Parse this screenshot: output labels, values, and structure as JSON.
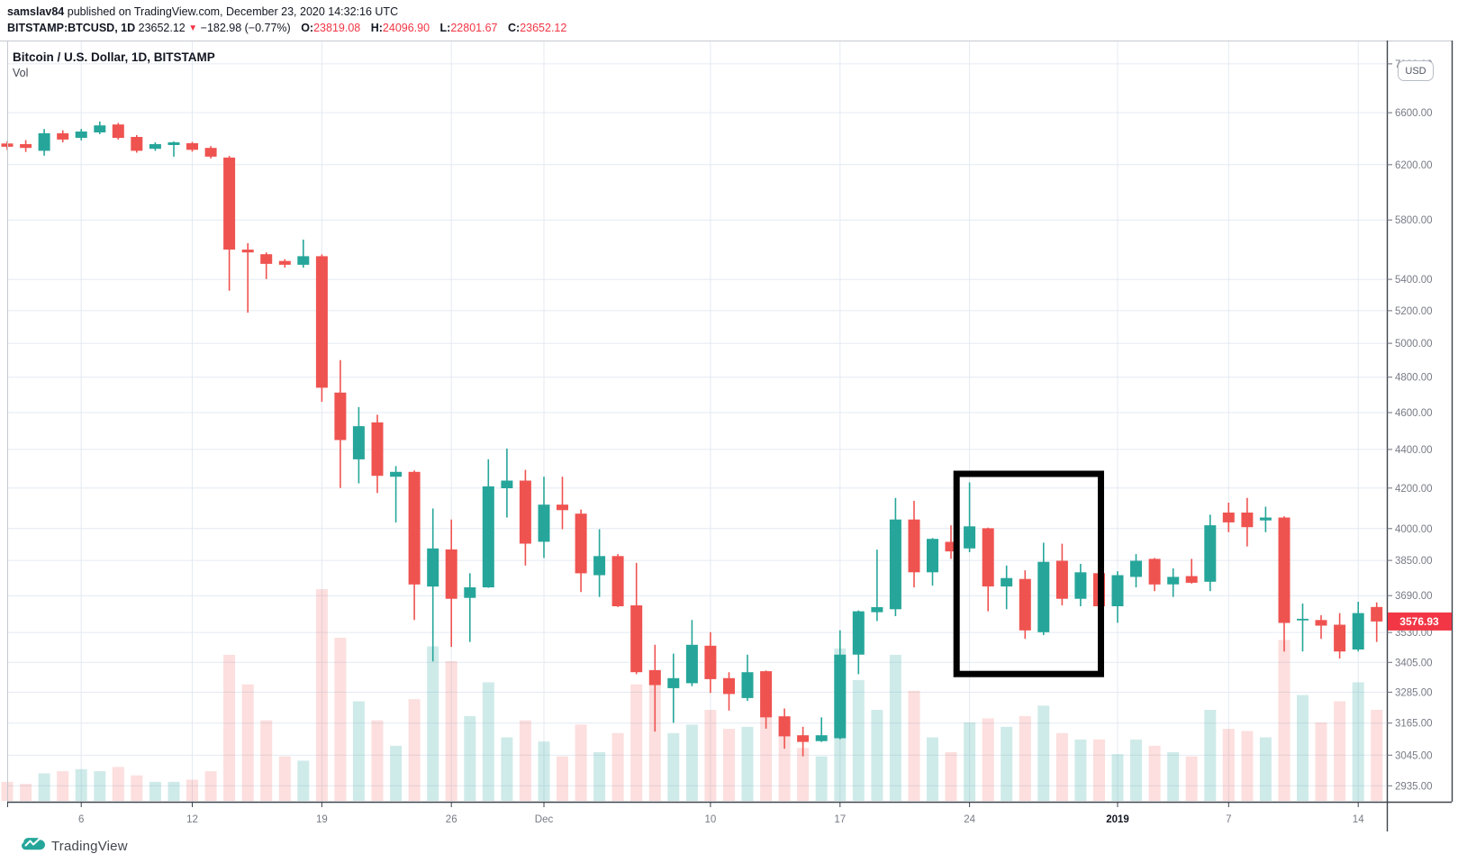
{
  "header": {
    "line1": {
      "username": "samslav84",
      "rest": " published on TradingView.com, December 23, 2020 14:32:16 UTC"
    },
    "line2": {
      "symbol": "BITSTAMP:BTCUSD, 1D",
      "price": "23652.12",
      "direction_icon": "▼",
      "change": "−182.98 (−0.77%)",
      "ohlc": [
        {
          "label": "O:",
          "value": "23819.08"
        },
        {
          "label": "H:",
          "value": "24096.90"
        },
        {
          "label": "L:",
          "value": "22801.67"
        },
        {
          "label": "C:",
          "value": "23652.12"
        }
      ]
    }
  },
  "legend": {
    "title": "Bitcoin / U.S. Dollar, 1D, BITSTAMP",
    "indicator": "Vol"
  },
  "price_scale": {
    "currency": "USD",
    "last_price": "3576.93",
    "ticks": [
      "7000.00",
      "6600.00",
      "6200.00",
      "5800.00",
      "5400.00",
      "5200.00",
      "5000.00",
      "4800.00",
      "4600.00",
      "4400.00",
      "4200.00",
      "4000.00",
      "3850.00",
      "3690.00",
      "3530.00",
      "3405.00",
      "3285.00",
      "3165.00",
      "3045.00",
      "2935.00"
    ]
  },
  "time_scale": {
    "ticks": [
      {
        "label": "6",
        "index": 4,
        "bold": false
      },
      {
        "label": "12",
        "index": 10,
        "bold": false
      },
      {
        "label": "19",
        "index": 17,
        "bold": false
      },
      {
        "label": "26",
        "index": 24,
        "bold": false
      },
      {
        "label": "Dec",
        "index": 29,
        "bold": false
      },
      {
        "label": "10",
        "index": 38,
        "bold": false
      },
      {
        "label": "17",
        "index": 45,
        "bold": false
      },
      {
        "label": "24",
        "index": 52,
        "bold": false
      },
      {
        "label": "2019",
        "index": 60,
        "bold": true
      },
      {
        "label": "7",
        "index": 66,
        "bold": false
      },
      {
        "label": "14",
        "index": 73,
        "bold": false
      }
    ]
  },
  "chart_data": {
    "type": "candlestick",
    "symbol": "BITSTAMP:BTCUSD",
    "interval": "1D",
    "price_scale_type": "logarithmic",
    "ylim": [
      2900,
      7050
    ],
    "ohlc": [
      [
        6360,
        6378,
        6310,
        6335
      ],
      [
        6355,
        6385,
        6295,
        6326
      ],
      [
        6304,
        6472,
        6267,
        6439
      ],
      [
        6439,
        6462,
        6369,
        6390
      ],
      [
        6403,
        6472,
        6383,
        6452
      ],
      [
        6445,
        6530,
        6432,
        6500
      ],
      [
        6507,
        6520,
        6390,
        6403
      ],
      [
        6410,
        6424,
        6290,
        6304
      ],
      [
        6319,
        6369,
        6304,
        6355
      ],
      [
        6348,
        6376,
        6260,
        6369
      ],
      [
        6362,
        6372,
        6297,
        6312
      ],
      [
        6326,
        6340,
        6246,
        6260
      ],
      [
        6253,
        6265,
        5327,
        5597
      ],
      [
        5597,
        5640,
        5188,
        5578
      ],
      [
        5566,
        5578,
        5402,
        5502
      ],
      [
        5521,
        5533,
        5477,
        5496
      ],
      [
        5496,
        5665,
        5477,
        5553
      ],
      [
        5553,
        5565,
        4660,
        4740
      ],
      [
        4712,
        4900,
        4200,
        4450
      ],
      [
        4348,
        4630,
        4224,
        4525
      ],
      [
        4546,
        4588,
        4175,
        4263
      ],
      [
        4258,
        4313,
        4030,
        4283
      ],
      [
        4283,
        4290,
        3583,
        3740
      ],
      [
        3731,
        4098,
        3409,
        3906
      ],
      [
        3901,
        4044,
        3469,
        3676
      ],
      [
        3680,
        3791,
        3490,
        3727
      ],
      [
        3727,
        4348,
        3725,
        4209
      ],
      [
        4199,
        4405,
        4054,
        4238
      ],
      [
        4238,
        4293,
        3826,
        3928
      ],
      [
        3937,
        4258,
        3861,
        4117
      ],
      [
        4117,
        4258,
        3997,
        4090
      ],
      [
        4073,
        4093,
        3706,
        3791
      ],
      [
        3782,
        3997,
        3684,
        3870
      ],
      [
        3870,
        3879,
        3640,
        3643
      ],
      [
        3647,
        3838,
        3357,
        3365
      ],
      [
        3373,
        3478,
        3133,
        3313
      ],
      [
        3301,
        3441,
        3166,
        3341
      ],
      [
        3321,
        3583,
        3309,
        3478
      ],
      [
        3474,
        3531,
        3282,
        3337
      ],
      [
        3341,
        3365,
        3213,
        3278
      ],
      [
        3262,
        3437,
        3251,
        3365
      ],
      [
        3369,
        3372,
        3144,
        3187
      ],
      [
        3191,
        3221,
        3069,
        3115
      ],
      [
        3119,
        3151,
        3041,
        3094
      ],
      [
        3097,
        3187,
        3094,
        3119
      ],
      [
        3108,
        3539,
        3104,
        3437
      ],
      [
        3437,
        3625,
        3357,
        3621
      ],
      [
        3617,
        3900,
        3579,
        3639
      ],
      [
        3630,
        4151,
        3600,
        4044
      ],
      [
        4044,
        4136,
        3727,
        3795
      ],
      [
        3795,
        3955,
        3735,
        3951
      ],
      [
        3937,
        4016,
        3857,
        3892
      ],
      [
        3906,
        4229,
        3888,
        4011
      ],
      [
        4002,
        4005,
        3621,
        3731
      ],
      [
        3731,
        3826,
        3630,
        3769
      ],
      [
        3765,
        3804,
        3503,
        3539
      ],
      [
        3531,
        3933,
        3519,
        3843
      ],
      [
        3848,
        3928,
        3647,
        3676
      ],
      [
        3676,
        3834,
        3643,
        3795
      ],
      [
        3791,
        3795,
        3579,
        3643
      ],
      [
        3643,
        3800,
        3571,
        3782
      ],
      [
        3774,
        3879,
        3727,
        3848
      ],
      [
        3857,
        3861,
        3710,
        3740
      ],
      [
        3740,
        3813,
        3684,
        3774
      ],
      [
        3778,
        3857,
        3744,
        3748
      ],
      [
        3752,
        4068,
        3710,
        4016
      ],
      [
        4078,
        4127,
        3983,
        4030
      ],
      [
        4078,
        4151,
        3915,
        4007
      ],
      [
        4040,
        4107,
        3983,
        4054
      ],
      [
        4054,
        4060,
        3450,
        3571
      ],
      [
        3583,
        3655,
        3450,
        3587
      ],
      [
        3583,
        3604,
        3503,
        3559
      ],
      [
        3563,
        3613,
        3421,
        3450
      ],
      [
        3458,
        3663,
        3450,
        3613
      ],
      [
        3640,
        3660,
        3490,
        3576.93
      ]
    ],
    "volume_rel": [
      0.09,
      0.08,
      0.13,
      0.14,
      0.15,
      0.14,
      0.16,
      0.12,
      0.09,
      0.09,
      0.1,
      0.14,
      0.69,
      0.55,
      0.38,
      0.21,
      0.19,
      1.0,
      0.77,
      0.47,
      0.38,
      0.26,
      0.48,
      0.73,
      0.66,
      0.4,
      0.56,
      0.3,
      0.38,
      0.28,
      0.21,
      0.36,
      0.23,
      0.32,
      0.55,
      0.62,
      0.32,
      0.36,
      0.43,
      0.34,
      0.35,
      0.47,
      0.4,
      0.25,
      0.21,
      0.72,
      0.57,
      0.43,
      0.69,
      0.52,
      0.3,
      0.23,
      0.37,
      0.39,
      0.35,
      0.4,
      0.45,
      0.32,
      0.29,
      0.29,
      0.22,
      0.29,
      0.26,
      0.23,
      0.21,
      0.43,
      0.34,
      0.33,
      0.3,
      0.76,
      0.5,
      0.37,
      0.47,
      0.56,
      0.43
    ],
    "annotation": {
      "shape": "rectangle",
      "color": "#000000",
      "from_index": 51.3,
      "to_index": 59.1,
      "top_price": 4273,
      "bottom_price": 3358
    }
  },
  "colors": {
    "up": "#26a69a",
    "down": "#ef5350",
    "volume_up": "rgba(38,166,154,0.22)",
    "volume_down": "rgba(239,83,80,0.19)",
    "grid": "#e4eaf2",
    "axis_text": "#787b86",
    "axis_text_dark": "#131722",
    "text": "#131722",
    "red": "#f23645",
    "badge_bg": "#f23645",
    "border_dark": "#3e434c",
    "border_light": "#c5c9d1",
    "brand": "#26a69a"
  },
  "branding": {
    "logo_text": "TradingView"
  }
}
